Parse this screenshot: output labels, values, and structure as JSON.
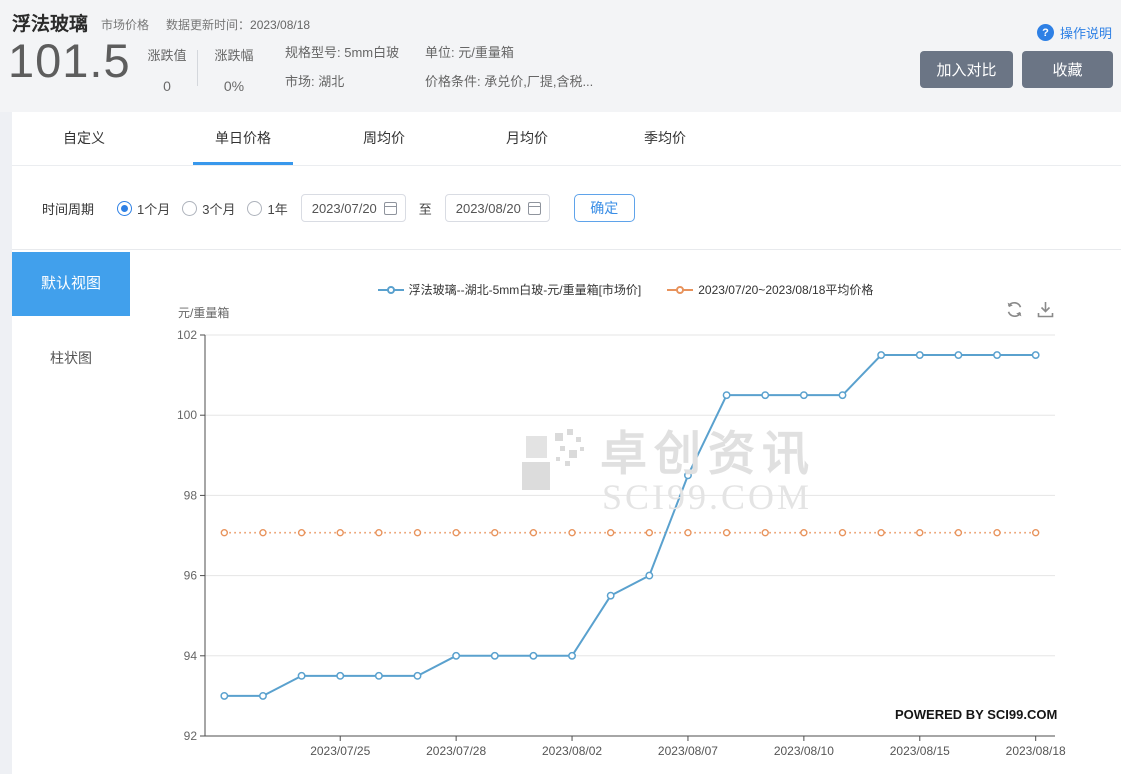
{
  "header": {
    "title": "浮法玻璃",
    "subtitle": "市场价格",
    "update_label": "数据更新时间：",
    "update_date": "2023/08/18",
    "price": "101.5",
    "change_label": "涨跌值",
    "change_value": "0",
    "change_pct_label": "涨跌幅",
    "change_pct_value": "0%",
    "spec_line": "规格型号: 5mm白玻",
    "market_line": "市场: 湖北",
    "unit_line": "单位: 元/重量箱",
    "condition_line": "价格条件: 承兑价,厂提,含税...",
    "help_icon_text": "?",
    "help_label": "操作说明",
    "compare_button": "加入对比",
    "favorite_button": "收藏"
  },
  "tabs": [
    {
      "label": "自定义",
      "active": false
    },
    {
      "label": "单日价格",
      "active": true
    },
    {
      "label": "周均价",
      "active": false
    },
    {
      "label": "月均价",
      "active": false
    },
    {
      "label": "季均价",
      "active": false
    }
  ],
  "filter": {
    "period_label": "时间周期",
    "options": [
      {
        "label": "1个月",
        "selected": true
      },
      {
        "label": "3个月",
        "selected": false
      },
      {
        "label": "1年",
        "selected": false
      }
    ],
    "start_date": "2023/07/20",
    "to_label": "至",
    "end_date": "2023/08/20",
    "confirm_button": "确定"
  },
  "sidebar": {
    "items": [
      {
        "label": "默认视图",
        "active": true
      },
      {
        "label": "柱状图",
        "active": false
      }
    ]
  },
  "chart": {
    "unit_title": "元/重量箱",
    "watermark_text": "卓创资讯",
    "watermark_sub": "SCI99.COM",
    "powered_by": "POWERED BY SCI99.COM"
  },
  "colors": {
    "accent_blue": "#2e80e5",
    "tab_underline": "#3898ec",
    "sidebar_active": "#41a0ec",
    "series_blue": "#5aa1ce",
    "series_orange": "#e8935c",
    "button_gray": "#6b7585"
  },
  "chart_data": {
    "type": "line",
    "title": "",
    "xlabel": "",
    "ylabel": "元/重量箱",
    "ylim": [
      92,
      102
    ],
    "y_ticks": [
      92,
      94,
      96,
      98,
      100,
      102
    ],
    "grid": true,
    "legend_position": "top",
    "x": [
      "2023/07/20",
      "2023/07/21",
      "2023/07/24",
      "2023/07/25",
      "2023/07/26",
      "2023/07/27",
      "2023/07/28",
      "2023/07/31",
      "2023/08/01",
      "2023/08/02",
      "2023/08/03",
      "2023/08/04",
      "2023/08/07",
      "2023/08/08",
      "2023/08/09",
      "2023/08/10",
      "2023/08/11",
      "2023/08/14",
      "2023/08/15",
      "2023/08/16",
      "2023/08/17",
      "2023/08/18"
    ],
    "x_tick_labels": [
      "2023/07/25",
      "2023/07/28",
      "2023/08/02",
      "2023/08/07",
      "2023/08/10",
      "2023/08/15",
      "2023/08/18"
    ],
    "series": [
      {
        "name": "浮法玻璃--湖北-5mm白玻-元/重量箱[市场价]",
        "color": "#5aa1ce",
        "style": "solid",
        "values": [
          93,
          93,
          93.5,
          93.5,
          93.5,
          93.5,
          94,
          94,
          94,
          94,
          95.5,
          96,
          98.5,
          100.5,
          100.5,
          100.5,
          100.5,
          101.5,
          101.5,
          101.5,
          101.5,
          101.5
        ]
      },
      {
        "name": "2023/07/20~2023/08/18平均价格",
        "color": "#e8935c",
        "style": "dotted",
        "constant": 97.07
      }
    ]
  }
}
